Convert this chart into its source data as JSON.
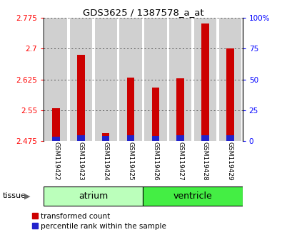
{
  "title": "GDS3625 / 1387578_a_at",
  "samples": [
    "GSM119422",
    "GSM119423",
    "GSM119424",
    "GSM119425",
    "GSM119426",
    "GSM119427",
    "GSM119428",
    "GSM119429"
  ],
  "red_values": [
    2.555,
    2.685,
    2.495,
    2.63,
    2.605,
    2.627,
    2.76,
    2.7
  ],
  "blue_percentiles": [
    3.5,
    5.0,
    4.0,
    4.5,
    4.0,
    4.5,
    5.0,
    4.5
  ],
  "base": 2.475,
  "ylim_left": [
    2.475,
    2.775
  ],
  "ylim_right": [
    0,
    100
  ],
  "yticks_left": [
    2.475,
    2.55,
    2.625,
    2.7,
    2.775
  ],
  "yticks_right": [
    0,
    25,
    50,
    75,
    100
  ],
  "tissue_groups": [
    {
      "label": "atrium",
      "start": 0,
      "end": 4,
      "light_color": "#ccffcc",
      "dark_color": "#ccffcc"
    },
    {
      "label": "ventricle",
      "start": 4,
      "end": 8,
      "light_color": "#44ee44",
      "dark_color": "#44ee44"
    }
  ],
  "red_color": "#cc0000",
  "blue_color": "#2222cc",
  "grid_color": "#555555",
  "bg_color": "#ffffff",
  "sample_bg": "#d0d0d0",
  "legend_red": "transformed count",
  "legend_blue": "percentile rank within the sample"
}
